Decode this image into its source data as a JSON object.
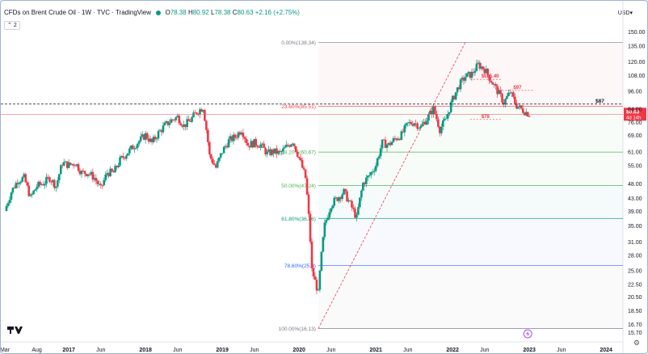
{
  "header": {
    "title": "CFDs on Brent Crude Oil · 1W · TVC · TradingView",
    "open_label": "O",
    "open_value": "78.38",
    "high_label": "H",
    "high_value": "80.92",
    "low_label": "L",
    "low_value": "78.38",
    "close_label": "C",
    "close_value": "80.63",
    "change": "+2.16 (+2.75%)",
    "indicator_count": "2",
    "currency": "USD"
  },
  "colors": {
    "up": "#089981",
    "down": "#f23645",
    "fib_grey": "#787b86",
    "fib_red": "#f23645",
    "fib_orange": "#ff9800",
    "fib_green": "#4caf50",
    "fib_teal": "#089981",
    "fib_blue": "#2962ff"
  },
  "icons": {
    "tradingview_logo": "tradingview-logo-icon",
    "lightning": "lightning-icon",
    "settings": "gear-icon",
    "currency_dropdown": "chevron-down-icon"
  },
  "chart_data": {
    "type": "candlestick",
    "y_scale": "log",
    "ylim": [
      15.7,
      150
    ],
    "xlim": [
      "2016-03",
      "2024-03"
    ],
    "y_ticks": [
      "150.00",
      "135.00",
      "120.00",
      "108.00",
      "96.00",
      "84.00",
      "76.00",
      "69.00",
      "61.00",
      "55.00",
      "48.00",
      "43.00",
      "39.00",
      "35.00",
      "31.00",
      "28.00",
      "25.00",
      "22.50",
      "20.50",
      "18.50",
      "16.70",
      "15.70"
    ],
    "x_ticks": [
      {
        "label": "Mar",
        "date": "2016-03"
      },
      {
        "label": "Aug",
        "date": "2016-08"
      },
      {
        "label": "2017",
        "date": "2017-01"
      },
      {
        "label": "Jun",
        "date": "2017-06"
      },
      {
        "label": "2018",
        "date": "2018-01"
      },
      {
        "label": "Jun",
        "date": "2018-06"
      },
      {
        "label": "2019",
        "date": "2019-01"
      },
      {
        "label": "Jun",
        "date": "2019-06"
      },
      {
        "label": "2020",
        "date": "2020-01"
      },
      {
        "label": "Jun",
        "date": "2020-06"
      },
      {
        "label": "2021",
        "date": "2021-01"
      },
      {
        "label": "Jun",
        "date": "2021-06"
      },
      {
        "label": "2022",
        "date": "2022-01"
      },
      {
        "label": "Jun",
        "date": "2022-06"
      },
      {
        "label": "2023",
        "date": "2023-01"
      },
      {
        "label": "Jun",
        "date": "2023-06"
      },
      {
        "label": "2024",
        "date": "2024-01"
      }
    ],
    "fib_levels": [
      {
        "label": "0.00%(138.34)",
        "price": 138.34,
        "color": "#787b86"
      },
      {
        "label": "23.60%(85.51)",
        "price": 85.51,
        "color": "#f23645"
      },
      {
        "label": "38.20%(60.67)",
        "price": 60.67,
        "color": "#4caf50"
      },
      {
        "label": "50.00%(47.24)",
        "price": 47.24,
        "color": "#4caf50"
      },
      {
        "label": "61.80%(36.86)",
        "price": 36.86,
        "color": "#089981"
      },
      {
        "label": "78.60%(25.9)",
        "price": 25.9,
        "color": "#2962ff"
      },
      {
        "label": "100.00%(16.13)",
        "price": 16.13,
        "color": "#787b86"
      }
    ],
    "fib_start_date": "2020-04",
    "fib_end_date": "2023-01",
    "trend_line": [
      {
        "date": "2020-04",
        "price": 16.13
      },
      {
        "date": "2022-03",
        "price": 138.34
      }
    ],
    "horizontal_dashed": {
      "price": 87,
      "label": "$87"
    },
    "annotations": [
      {
        "label": "$105.40",
        "date": "2022-05",
        "price": 105.4
      },
      {
        "label": "$97",
        "date": "2022-10",
        "price": 97
      },
      {
        "label": "$78",
        "date": "2022-05",
        "price": 78
      }
    ],
    "last_price": {
      "value": "80.63",
      "countdown": "4d 14h",
      "price": 80.63
    },
    "weekly_closes": [
      {
        "date": "2016-03",
        "close": 39
      },
      {
        "date": "2016-04",
        "close": 45
      },
      {
        "date": "2016-05",
        "close": 49
      },
      {
        "date": "2016-06",
        "close": 50
      },
      {
        "date": "2016-07",
        "close": 43
      },
      {
        "date": "2016-08",
        "close": 47
      },
      {
        "date": "2016-09",
        "close": 48
      },
      {
        "date": "2016-10",
        "close": 50
      },
      {
        "date": "2016-11",
        "close": 47
      },
      {
        "date": "2016-12",
        "close": 56
      },
      {
        "date": "2017-01",
        "close": 55
      },
      {
        "date": "2017-02",
        "close": 56
      },
      {
        "date": "2017-03",
        "close": 52
      },
      {
        "date": "2017-04",
        "close": 52
      },
      {
        "date": "2017-05",
        "close": 50
      },
      {
        "date": "2017-06",
        "close": 46
      },
      {
        "date": "2017-07",
        "close": 52
      },
      {
        "date": "2017-08",
        "close": 52
      },
      {
        "date": "2017-09",
        "close": 57
      },
      {
        "date": "2017-10",
        "close": 60
      },
      {
        "date": "2017-11",
        "close": 63
      },
      {
        "date": "2017-12",
        "close": 66
      },
      {
        "date": "2018-01",
        "close": 69
      },
      {
        "date": "2018-02",
        "close": 65
      },
      {
        "date": "2018-03",
        "close": 70
      },
      {
        "date": "2018-04",
        "close": 74
      },
      {
        "date": "2018-05",
        "close": 77
      },
      {
        "date": "2018-06",
        "close": 79
      },
      {
        "date": "2018-07",
        "close": 74
      },
      {
        "date": "2018-08",
        "close": 77
      },
      {
        "date": "2018-09",
        "close": 82
      },
      {
        "date": "2018-10",
        "close": 85
      },
      {
        "date": "2018-11",
        "close": 59
      },
      {
        "date": "2018-12",
        "close": 54
      },
      {
        "date": "2019-01",
        "close": 61
      },
      {
        "date": "2019-02",
        "close": 66
      },
      {
        "date": "2019-03",
        "close": 68
      },
      {
        "date": "2019-04",
        "close": 72
      },
      {
        "date": "2019-05",
        "close": 64
      },
      {
        "date": "2019-06",
        "close": 65
      },
      {
        "date": "2019-07",
        "close": 64
      },
      {
        "date": "2019-08",
        "close": 60
      },
      {
        "date": "2019-09",
        "close": 61
      },
      {
        "date": "2019-10",
        "close": 60
      },
      {
        "date": "2019-11",
        "close": 63
      },
      {
        "date": "2019-12",
        "close": 66
      },
      {
        "date": "2020-01",
        "close": 58
      },
      {
        "date": "2020-02",
        "close": 50
      },
      {
        "date": "2020-03",
        "close": 25
      },
      {
        "date": "2020-04",
        "close": 21
      },
      {
        "date": "2020-05",
        "close": 35
      },
      {
        "date": "2020-06",
        "close": 41
      },
      {
        "date": "2020-07",
        "close": 43
      },
      {
        "date": "2020-08",
        "close": 45
      },
      {
        "date": "2020-09",
        "close": 41
      },
      {
        "date": "2020-10",
        "close": 37
      },
      {
        "date": "2020-11",
        "close": 48
      },
      {
        "date": "2020-12",
        "close": 51
      },
      {
        "date": "2021-01",
        "close": 55
      },
      {
        "date": "2021-02",
        "close": 65
      },
      {
        "date": "2021-03",
        "close": 64
      },
      {
        "date": "2021-04",
        "close": 67
      },
      {
        "date": "2021-05",
        "close": 69
      },
      {
        "date": "2021-06",
        "close": 75
      },
      {
        "date": "2021-07",
        "close": 76
      },
      {
        "date": "2021-08",
        "close": 73
      },
      {
        "date": "2021-09",
        "close": 78
      },
      {
        "date": "2021-10",
        "close": 84
      },
      {
        "date": "2021-11",
        "close": 72
      },
      {
        "date": "2021-12",
        "close": 78
      },
      {
        "date": "2022-01",
        "close": 90
      },
      {
        "date": "2022-02",
        "close": 100
      },
      {
        "date": "2022-03",
        "close": 107
      },
      {
        "date": "2022-04",
        "close": 109
      },
      {
        "date": "2022-05",
        "close": 117
      },
      {
        "date": "2022-06",
        "close": 113
      },
      {
        "date": "2022-07",
        "close": 104
      },
      {
        "date": "2022-08",
        "close": 96
      },
      {
        "date": "2022-09",
        "close": 88
      },
      {
        "date": "2022-10",
        "close": 95
      },
      {
        "date": "2022-11",
        "close": 86
      },
      {
        "date": "2022-12",
        "close": 83
      },
      {
        "date": "2023-01",
        "close": 80.63
      }
    ]
  }
}
